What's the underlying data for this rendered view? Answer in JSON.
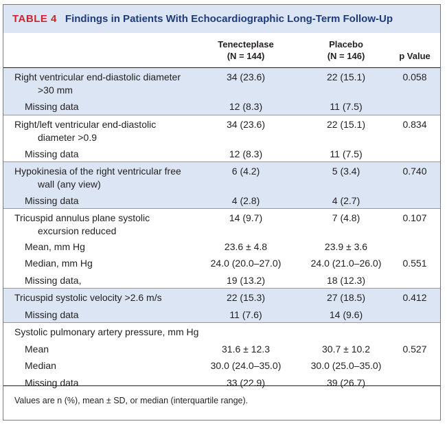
{
  "table": {
    "number": "TABLE 4",
    "title": "Findings in Patients With Echocardiographic Long-Term Follow-Up",
    "headers": {
      "col1_line1": "Tenecteplase",
      "col1_line2": "(N = 144)",
      "col2_line1": "Placebo",
      "col2_line2": "(N = 146)",
      "col3": "p Value"
    },
    "groups": [
      {
        "rows": [
          {
            "label1": "Right ventricular end-diastolic diameter",
            "label2": ">30 mm",
            "v1": "34 (23.6)",
            "v2": "22 (15.1)",
            "p": "0.058"
          },
          {
            "sub": "Missing data",
            "v1": "12 (8.3)",
            "v2": "11 (7.5)",
            "p": ""
          }
        ]
      },
      {
        "rows": [
          {
            "label1": "Right/left ventricular end-diastolic",
            "label2": "diameter >0.9",
            "v1": "34 (23.6)",
            "v2": "22 (15.1)",
            "p": "0.834"
          },
          {
            "sub": "Missing data",
            "v1": "12 (8.3)",
            "v2": "11 (7.5)",
            "p": ""
          }
        ]
      },
      {
        "rows": [
          {
            "label1": "Hypokinesia of the right ventricular free",
            "label2": "wall (any view)",
            "v1": "6 (4.2)",
            "v2": "5 (3.4)",
            "p": "0.740"
          },
          {
            "sub": "Missing data",
            "v1": "4 (2.8)",
            "v2": "4 (2.7)",
            "p": ""
          }
        ]
      },
      {
        "rows": [
          {
            "label1": "Tricuspid annulus plane systolic",
            "label2": "excursion reduced",
            "v1": "14 (9.7)",
            "v2": "7 (4.8)",
            "p": "0.107"
          },
          {
            "sub": "Mean, mm Hg",
            "v1": "23.6 ± 4.8",
            "v2": "23.9 ± 3.6",
            "p": ""
          },
          {
            "sub": "Median, mm Hg",
            "v1": "24.0 (20.0–27.0)",
            "v2": "24.0 (21.0–26.0)",
            "p": "0.551"
          },
          {
            "sub": "Missing data,",
            "v1": "19 (13.2)",
            "v2": "18 (12.3)",
            "p": ""
          }
        ]
      },
      {
        "rows": [
          {
            "label1": "Tricuspid systolic velocity >2.6 m/s",
            "label2": "",
            "v1": "22 (15.3)",
            "v2": "27 (18.5)",
            "p": "0.412"
          },
          {
            "sub": "Missing data",
            "v1": "11 (7.6)",
            "v2": "14 (9.6)",
            "p": ""
          }
        ]
      },
      {
        "rows": [
          {
            "label1": "Systolic pulmonary artery pressure, mm Hg",
            "label2": "",
            "v1": "",
            "v2": "",
            "p": ""
          },
          {
            "sub": "Mean",
            "v1": "31.6 ± 12.3",
            "v2": "30.7 ± 10.2",
            "p": "0.527"
          },
          {
            "sub": "Median",
            "v1": "30.0 (24.0–35.0)",
            "v2": "30.0 (25.0–35.0)",
            "p": ""
          },
          {
            "sub": "Missing data",
            "v1": "33 (22.9)",
            "v2": "39 (26.7)",
            "p": ""
          }
        ]
      }
    ],
    "footnote": "Values are n (%), mean ± SD, or median (interquartile range)."
  },
  "colors": {
    "shade": "#dbe5f3",
    "title_number": "#d2232a",
    "title_text": "#1f3b78"
  }
}
